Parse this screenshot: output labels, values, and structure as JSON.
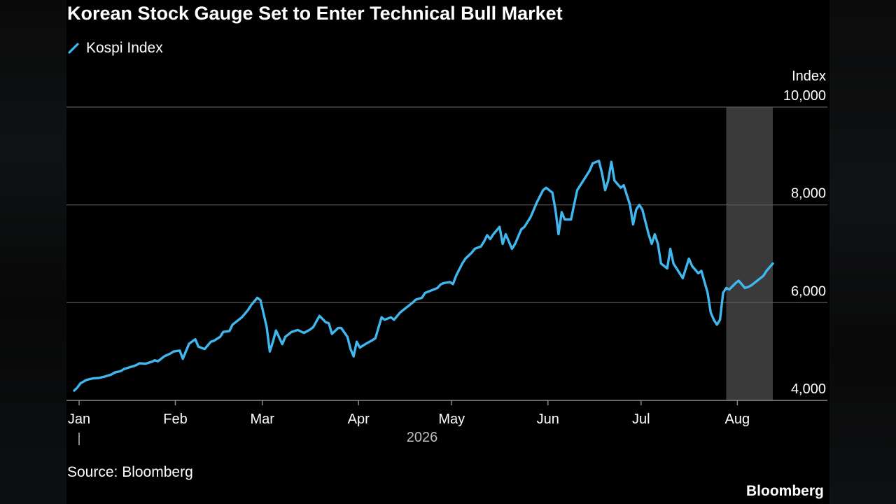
{
  "header": {
    "title": "Korean Stock Gauge Set to Enter Technical Bull Market"
  },
  "legend": {
    "label": "Kospi Index",
    "icon": "diagonal-line-swatch",
    "color": "#3FB8F0"
  },
  "footer": {
    "source": "Source: Bloomberg",
    "brand": "Bloomberg"
  },
  "colors": {
    "background": "#000000",
    "line": "#3FB8F0",
    "grid": "#5a5a5a",
    "highlight_band": "#3a3a3a",
    "text": "#ffffff",
    "year_text": "#bdbdbd"
  },
  "chart_data": {
    "type": "line",
    "title": "Korean Stock Gauge Set to Enter Technical Bull Market",
    "ylabel": "Index",
    "ylim": [
      4000,
      10000
    ],
    "yticks": [
      4000,
      6000,
      8000,
      10000
    ],
    "ytick_labels": [
      "4,000",
      "6,000",
      "8,000",
      "10,000"
    ],
    "y_axis_position": "right",
    "grid": true,
    "legend_position": "top-left",
    "xlim": [
      "2026-01-01",
      "2026-08-14"
    ],
    "xticks": [
      {
        "label": "Jan",
        "date": "2026-01-01"
      },
      {
        "label": "Feb",
        "date": "2026-02-01"
      },
      {
        "label": "Mar",
        "date": "2026-03-01"
      },
      {
        "label": "Apr",
        "date": "2026-04-01"
      },
      {
        "label": "May",
        "date": "2026-05-01"
      },
      {
        "label": "Jun",
        "date": "2026-06-01"
      },
      {
        "label": "Jul",
        "date": "2026-07-01"
      },
      {
        "label": "Aug",
        "date": "2026-08-01"
      }
    ],
    "year_label": "2026",
    "highlight_range": [
      "2026-07-30",
      "2026-08-14"
    ],
    "series": [
      {
        "name": "Kospi Index",
        "points": [
          [
            "2026-01-01",
            4200
          ],
          [
            "2026-01-02",
            4260
          ],
          [
            "2026-01-03",
            4350
          ],
          [
            "2026-01-05",
            4420
          ],
          [
            "2026-01-07",
            4450
          ],
          [
            "2026-01-09",
            4460
          ],
          [
            "2026-01-11",
            4490
          ],
          [
            "2026-01-13",
            4530
          ],
          [
            "2026-01-14",
            4570
          ],
          [
            "2026-01-16",
            4600
          ],
          [
            "2026-01-17",
            4640
          ],
          [
            "2026-01-19",
            4680
          ],
          [
            "2026-01-21",
            4720
          ],
          [
            "2026-01-22",
            4760
          ],
          [
            "2026-01-24",
            4750
          ],
          [
            "2026-01-26",
            4790
          ],
          [
            "2026-01-27",
            4820
          ],
          [
            "2026-01-28",
            4800
          ],
          [
            "2026-01-30",
            4900
          ],
          [
            "2026-02-01",
            4960
          ],
          [
            "2026-02-02",
            5000
          ],
          [
            "2026-02-04",
            5020
          ],
          [
            "2026-02-05",
            4850
          ],
          [
            "2026-02-07",
            5160
          ],
          [
            "2026-02-09",
            5250
          ],
          [
            "2026-02-10",
            5100
          ],
          [
            "2026-02-12",
            5050
          ],
          [
            "2026-02-14",
            5200
          ],
          [
            "2026-02-15",
            5220
          ],
          [
            "2026-02-17",
            5300
          ],
          [
            "2026-02-18",
            5400
          ],
          [
            "2026-02-20",
            5420
          ],
          [
            "2026-02-21",
            5550
          ],
          [
            "2026-02-23",
            5650
          ],
          [
            "2026-02-24",
            5700
          ],
          [
            "2026-02-26",
            5850
          ],
          [
            "2026-02-27",
            5950
          ],
          [
            "2026-03-01",
            6100
          ],
          [
            "2026-03-02",
            6050
          ],
          [
            "2026-03-04",
            5500
          ],
          [
            "2026-03-05",
            5000
          ],
          [
            "2026-03-06",
            5200
          ],
          [
            "2026-03-07",
            5430
          ],
          [
            "2026-03-09",
            5150
          ],
          [
            "2026-03-10",
            5300
          ],
          [
            "2026-03-12",
            5400
          ],
          [
            "2026-03-14",
            5440
          ],
          [
            "2026-03-16",
            5380
          ],
          [
            "2026-03-18",
            5450
          ],
          [
            "2026-03-19",
            5500
          ],
          [
            "2026-03-21",
            5730
          ],
          [
            "2026-03-23",
            5600
          ],
          [
            "2026-03-24",
            5580
          ],
          [
            "2026-03-25",
            5360
          ],
          [
            "2026-03-27",
            5480
          ],
          [
            "2026-03-28",
            5480
          ],
          [
            "2026-03-30",
            5300
          ],
          [
            "2026-03-31",
            5050
          ],
          [
            "2026-04-01",
            4900
          ],
          [
            "2026-04-02",
            5200
          ],
          [
            "2026-04-03",
            5080
          ],
          [
            "2026-04-05",
            5160
          ],
          [
            "2026-04-07",
            5230
          ],
          [
            "2026-04-08",
            5270
          ],
          [
            "2026-04-10",
            5700
          ],
          [
            "2026-04-11",
            5650
          ],
          [
            "2026-04-13",
            5700
          ],
          [
            "2026-04-14",
            5650
          ],
          [
            "2026-04-16",
            5800
          ],
          [
            "2026-04-18",
            5900
          ],
          [
            "2026-04-20",
            6000
          ],
          [
            "2026-04-21",
            6060
          ],
          [
            "2026-04-23",
            6100
          ],
          [
            "2026-04-24",
            6200
          ],
          [
            "2026-04-26",
            6250
          ],
          [
            "2026-04-28",
            6300
          ],
          [
            "2026-04-29",
            6370
          ],
          [
            "2026-04-30",
            6400
          ],
          [
            "2026-05-02",
            6420
          ],
          [
            "2026-05-03",
            6380
          ],
          [
            "2026-05-04",
            6550
          ],
          [
            "2026-05-06",
            6800
          ],
          [
            "2026-05-07",
            6900
          ],
          [
            "2026-05-09",
            7020
          ],
          [
            "2026-05-10",
            7100
          ],
          [
            "2026-05-12",
            7150
          ],
          [
            "2026-05-13",
            7250
          ],
          [
            "2026-05-14",
            7380
          ],
          [
            "2026-05-15",
            7300
          ],
          [
            "2026-05-16",
            7400
          ],
          [
            "2026-05-18",
            7550
          ],
          [
            "2026-05-19",
            7200
          ],
          [
            "2026-05-20",
            7400
          ],
          [
            "2026-05-22",
            7100
          ],
          [
            "2026-05-23",
            7200
          ],
          [
            "2026-05-25",
            7500
          ],
          [
            "2026-05-26",
            7550
          ],
          [
            "2026-05-28",
            7750
          ],
          [
            "2026-05-29",
            7900
          ],
          [
            "2026-05-30",
            8050
          ],
          [
            "2026-06-01",
            8300
          ],
          [
            "2026-06-02",
            8350
          ],
          [
            "2026-06-04",
            8250
          ],
          [
            "2026-06-05",
            7900
          ],
          [
            "2026-06-06",
            7400
          ],
          [
            "2026-06-07",
            7850
          ],
          [
            "2026-06-08",
            7700
          ],
          [
            "2026-06-10",
            7700
          ],
          [
            "2026-06-11",
            8000
          ],
          [
            "2026-06-12",
            8300
          ],
          [
            "2026-06-14",
            8500
          ],
          [
            "2026-06-16",
            8700
          ],
          [
            "2026-06-17",
            8850
          ],
          [
            "2026-06-19",
            8900
          ],
          [
            "2026-06-20",
            8650
          ],
          [
            "2026-06-21",
            8300
          ],
          [
            "2026-06-22",
            8500
          ],
          [
            "2026-06-23",
            8880
          ],
          [
            "2026-06-24",
            8500
          ],
          [
            "2026-06-26",
            8350
          ],
          [
            "2026-06-27",
            8400
          ],
          [
            "2026-06-28",
            8200
          ],
          [
            "2026-06-29",
            8000
          ],
          [
            "2026-06-30",
            7600
          ],
          [
            "2026-07-01",
            7900
          ],
          [
            "2026-07-02",
            8000
          ],
          [
            "2026-07-03",
            7900
          ],
          [
            "2026-07-05",
            7400
          ],
          [
            "2026-07-06",
            7200
          ],
          [
            "2026-07-07",
            7400
          ],
          [
            "2026-07-08",
            7200
          ],
          [
            "2026-07-09",
            6800
          ],
          [
            "2026-07-11",
            6700
          ],
          [
            "2026-07-12",
            7100
          ],
          [
            "2026-07-13",
            6800
          ],
          [
            "2026-07-15",
            6600
          ],
          [
            "2026-07-16",
            6500
          ],
          [
            "2026-07-18",
            6900
          ],
          [
            "2026-07-19",
            6750
          ],
          [
            "2026-07-21",
            6600
          ],
          [
            "2026-07-22",
            6650
          ],
          [
            "2026-07-24",
            6200
          ],
          [
            "2026-07-25",
            5800
          ],
          [
            "2026-07-26",
            5650
          ],
          [
            "2026-07-27",
            5550
          ],
          [
            "2026-07-28",
            5650
          ],
          [
            "2026-07-29",
            6200
          ],
          [
            "2026-07-30",
            6300
          ],
          [
            "2026-07-31",
            6270
          ],
          [
            "2026-08-02",
            6400
          ],
          [
            "2026-08-03",
            6450
          ],
          [
            "2026-08-05",
            6300
          ],
          [
            "2026-08-06",
            6320
          ],
          [
            "2026-08-07",
            6350
          ],
          [
            "2026-08-09",
            6450
          ],
          [
            "2026-08-11",
            6550
          ],
          [
            "2026-08-12",
            6650
          ],
          [
            "2026-08-14",
            6800
          ]
        ]
      }
    ]
  }
}
